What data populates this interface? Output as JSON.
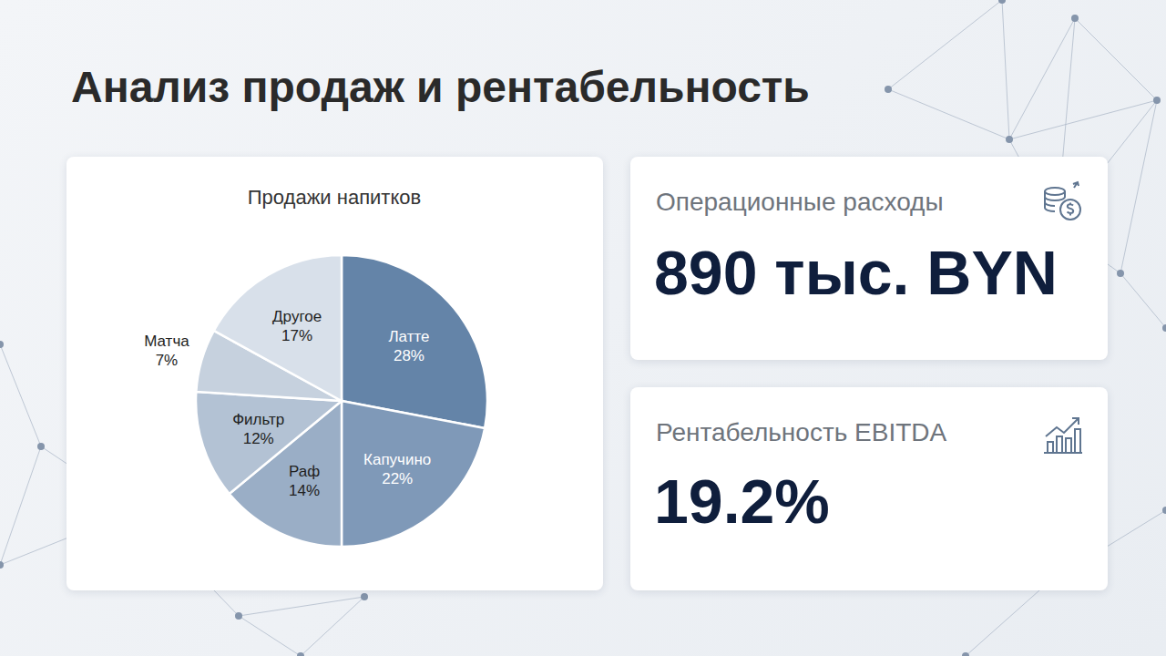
{
  "title": "Анализ продаж и рентабельность",
  "chart_data": {
    "type": "pie",
    "title": "Продажи напитков",
    "categories": [
      "Латте",
      "Капучино",
      "Раф",
      "Фильтр",
      "Матча",
      "Другое"
    ],
    "values": [
      28,
      22,
      14,
      12,
      7,
      17
    ],
    "value_labels": [
      "28%",
      "22%",
      "14%",
      "12%",
      "7%",
      "17%"
    ],
    "colors": [
      "#6484a8",
      "#7f99b8",
      "#9aaec6",
      "#b3c2d4",
      "#c6d1de",
      "#d8e0ea"
    ],
    "data_labels": true
  },
  "kpis": [
    {
      "label": "Операционные расходы",
      "value": "890 тыс. BYN"
    },
    {
      "label": "Рентабельность EBITDA",
      "value": "19.2%"
    }
  ]
}
